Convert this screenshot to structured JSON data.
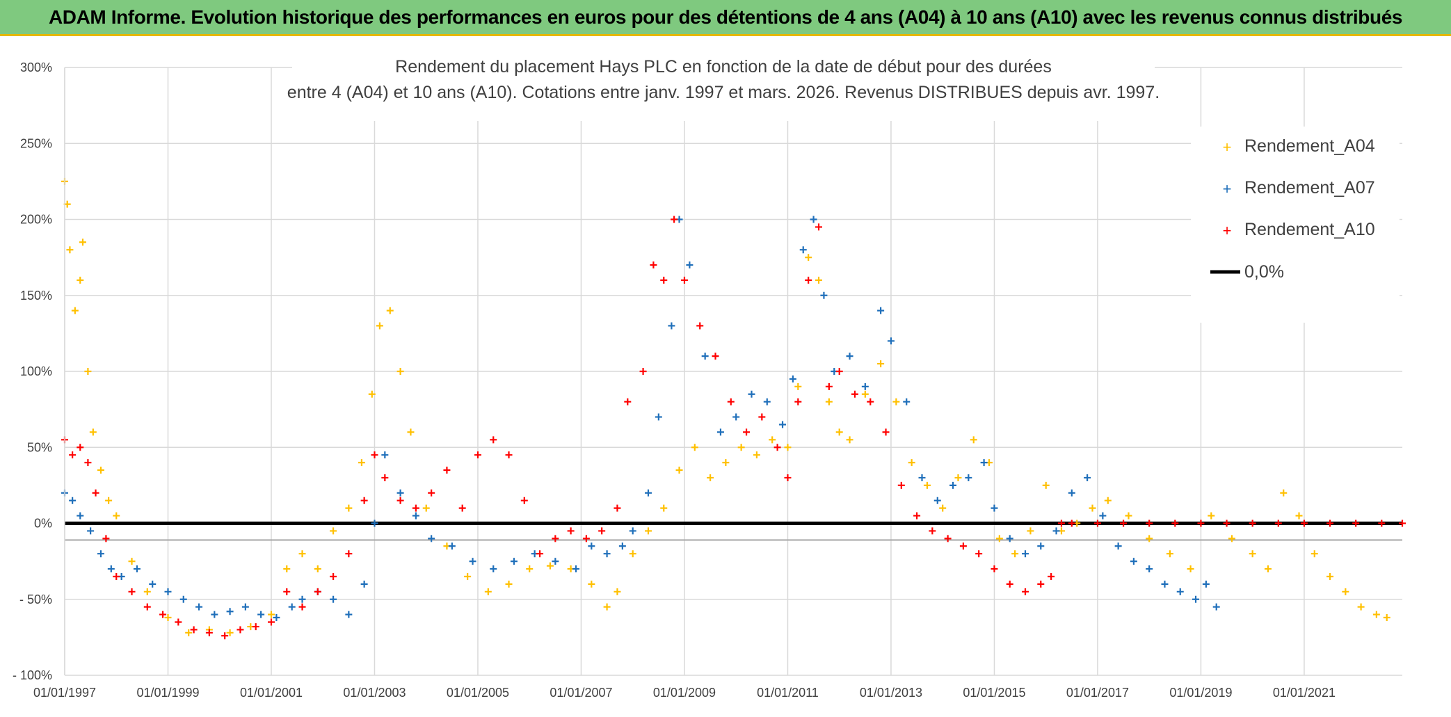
{
  "banner": {
    "title": "ADAM Informe. Evolution historique des performances en euros pour des détentions de 4 ans (A04) à 10 ans (A10) avec les revenus connus distribués"
  },
  "chart_data": {
    "type": "scatter",
    "title_line1": "Rendement du placement Hays PLC en fonction de la date de début pour des durées",
    "title_line2": "entre 4 (A04) et 10 ans (A10). Cotations entre janv. 1997 et mars. 2026. Revenus DISTRIBUES depuis avr. 1997.",
    "xlabel": "",
    "ylabel": "",
    "xlim": [
      1997.0,
      2022.9
    ],
    "ylim": [
      -100,
      300
    ],
    "y_ticks": [
      300,
      250,
      200,
      150,
      100,
      50,
      0,
      -50,
      -100
    ],
    "y_tick_labels": [
      "300%",
      "250%",
      "200%",
      "150%",
      "100%",
      "50%",
      "0%",
      "- 50%",
      "- 100%"
    ],
    "x_ticks": [
      1997,
      1999,
      2001,
      2003,
      2005,
      2007,
      2009,
      2011,
      2013,
      2015,
      2017,
      2019,
      2021
    ],
    "x_tick_labels": [
      "01/01/1997",
      "01/01/1999",
      "01/01/2001",
      "01/01/2003",
      "01/01/2005",
      "01/01/2007",
      "01/01/2009",
      "01/01/2011",
      "01/01/2013",
      "01/01/2015",
      "01/01/2017",
      "01/01/2019",
      "01/01/2021"
    ],
    "grid": true,
    "legend_position": "top-right",
    "reference_line": {
      "name": "0,0%",
      "value": 0,
      "color": "#000000"
    },
    "secondary_line": {
      "value": -11,
      "color": "#a6a6a6"
    },
    "series": [
      {
        "name": "Rendement_A04",
        "color": "#ffc000",
        "x": [
          1997.0,
          1997.05,
          1997.1,
          1997.2,
          1997.3,
          1997.35,
          1997.45,
          1997.55,
          1997.7,
          1997.85,
          1998.0,
          1998.3,
          1998.6,
          1999.0,
          1999.4,
          1999.8,
          2000.2,
          2000.6,
          2001.0,
          2001.3,
          2001.6,
          2001.9,
          2002.2,
          2002.5,
          2002.75,
          2002.95,
          2003.1,
          2003.3,
          2003.5,
          2003.7,
          2004.0,
          2004.4,
          2004.8,
          2005.2,
          2005.6,
          2006.0,
          2006.4,
          2006.8,
          2007.2,
          2007.5,
          2007.7,
          2008.0,
          2008.3,
          2008.6,
          2008.9,
          2009.2,
          2009.5,
          2009.8,
          2010.1,
          2010.4,
          2010.7,
          2011.0,
          2011.2,
          2011.4,
          2011.6,
          2011.8,
          2012.0,
          2012.2,
          2012.5,
          2012.8,
          2013.1,
          2013.4,
          2013.7,
          2014.0,
          2014.3,
          2014.6,
          2014.9,
          2015.1,
          2015.4,
          2015.7,
          2016.0,
          2016.3,
          2016.6,
          2016.9,
          2017.2,
          2017.6,
          2018.0,
          2018.4,
          2018.8,
          2019.2,
          2019.6,
          2020.0,
          2020.3,
          2020.6,
          2020.9,
          2021.2,
          2021.5,
          2021.8,
          2022.1,
          2022.4,
          2022.6
        ],
        "y": [
          225,
          210,
          180,
          140,
          160,
          185,
          100,
          60,
          35,
          15,
          5,
          -25,
          -45,
          -62,
          -72,
          -70,
          -72,
          -68,
          -60,
          -30,
          -20,
          -30,
          -5,
          10,
          40,
          85,
          130,
          140,
          100,
          60,
          10,
          -15,
          -35,
          -45,
          -40,
          -30,
          -28,
          -30,
          -40,
          -55,
          -45,
          -20,
          -5,
          10,
          35,
          50,
          30,
          40,
          50,
          45,
          55,
          50,
          90,
          175,
          160,
          80,
          60,
          55,
          85,
          105,
          80,
          40,
          25,
          10,
          30,
          55,
          40,
          -10,
          -20,
          -5,
          25,
          -5,
          0,
          10,
          15,
          5,
          -10,
          -20,
          -30,
          5,
          -10,
          -20,
          -30,
          20,
          5,
          -20,
          -35,
          -45,
          -55,
          -60,
          -62
        ]
      },
      {
        "name": "Rendement_A07",
        "color": "#1f6fba",
        "x": [
          1997.0,
          1997.15,
          1997.3,
          1997.5,
          1997.7,
          1997.9,
          1998.1,
          1998.4,
          1998.7,
          1999.0,
          1999.3,
          1999.6,
          1999.9,
          2000.2,
          2000.5,
          2000.8,
          2001.1,
          2001.4,
          2001.6,
          2001.9,
          2002.2,
          2002.5,
          2002.8,
          2003.0,
          2003.2,
          2003.5,
          2003.8,
          2004.1,
          2004.5,
          2004.9,
          2005.3,
          2005.7,
          2006.1,
          2006.5,
          2006.9,
          2007.2,
          2007.5,
          2007.8,
          2008.0,
          2008.3,
          2008.5,
          2008.75,
          2008.9,
          2009.1,
          2009.4,
          2009.7,
          2010.0,
          2010.3,
          2010.6,
          2010.9,
          2011.1,
          2011.3,
          2011.5,
          2011.7,
          2011.9,
          2012.2,
          2012.5,
          2012.8,
          2013.0,
          2013.3,
          2013.6,
          2013.9,
          2014.2,
          2014.5,
          2014.8,
          2015.0,
          2015.3,
          2015.6,
          2015.9,
          2016.2,
          2016.5,
          2016.8,
          2017.1,
          2017.4,
          2017.7,
          2018.0,
          2018.3,
          2018.6,
          2018.9,
          2019.1,
          2019.3
        ],
        "y": [
          20,
          15,
          5,
          -5,
          -20,
          -30,
          -35,
          -30,
          -40,
          -45,
          -50,
          -55,
          -60,
          -58,
          -55,
          -60,
          -62,
          -55,
          -50,
          -45,
          -50,
          -60,
          -40,
          0,
          45,
          20,
          5,
          -10,
          -15,
          -25,
          -30,
          -25,
          -20,
          -25,
          -30,
          -15,
          -20,
          -15,
          -5,
          20,
          70,
          130,
          200,
          170,
          110,
          60,
          70,
          85,
          80,
          65,
          95,
          180,
          200,
          150,
          100,
          110,
          90,
          140,
          120,
          80,
          30,
          15,
          25,
          30,
          40,
          10,
          -10,
          -20,
          -15,
          -5,
          20,
          30,
          5,
          -15,
          -25,
          -30,
          -40,
          -45,
          -50,
          -40,
          -55
        ]
      },
      {
        "name": "Rendement_A10",
        "color": "#ff0000",
        "x": [
          1997.0,
          1997.15,
          1997.3,
          1997.45,
          1997.6,
          1997.8,
          1998.0,
          1998.3,
          1998.6,
          1998.9,
          1999.2,
          1999.5,
          1999.8,
          2000.1,
          2000.4,
          2000.7,
          2001.0,
          2001.3,
          2001.6,
          2001.9,
          2002.2,
          2002.5,
          2002.8,
          2003.0,
          2003.2,
          2003.5,
          2003.8,
          2004.1,
          2004.4,
          2004.7,
          2005.0,
          2005.3,
          2005.6,
          2005.9,
          2006.2,
          2006.5,
          2006.8,
          2007.1,
          2007.4,
          2007.7,
          2007.9,
          2008.2,
          2008.4,
          2008.6,
          2008.8,
          2009.0,
          2009.3,
          2009.6,
          2009.9,
          2010.2,
          2010.5,
          2010.8,
          2011.0,
          2011.2,
          2011.4,
          2011.6,
          2011.8,
          2012.0,
          2012.3,
          2012.6,
          2012.9,
          2013.2,
          2013.5,
          2013.8,
          2014.1,
          2014.4,
          2014.7,
          2015.0,
          2015.3,
          2015.6,
          2015.9,
          2016.1,
          2016.3,
          2016.5,
          2017.0,
          2017.5,
          2018.0,
          2018.5,
          2019.0,
          2019.5,
          2020.0,
          2020.5,
          2021.0,
          2021.5,
          2022.0,
          2022.5,
          2022.9
        ],
        "y": [
          55,
          45,
          50,
          40,
          20,
          -10,
          -35,
          -45,
          -55,
          -60,
          -65,
          -70,
          -72,
          -74,
          -70,
          -68,
          -65,
          -45,
          -55,
          -45,
          -35,
          -20,
          15,
          45,
          30,
          15,
          10,
          20,
          35,
          10,
          45,
          55,
          45,
          15,
          -20,
          -10,
          -5,
          -10,
          -5,
          10,
          80,
          100,
          170,
          160,
          200,
          160,
          130,
          110,
          80,
          60,
          70,
          50,
          30,
          80,
          160,
          195,
          90,
          100,
          85,
          80,
          60,
          25,
          5,
          -5,
          -10,
          -15,
          -20,
          -30,
          -40,
          -45,
          -40,
          -35,
          0,
          0,
          0,
          0,
          0,
          0,
          0,
          0,
          0,
          0,
          0,
          0,
          0,
          0,
          0
        ]
      }
    ]
  }
}
